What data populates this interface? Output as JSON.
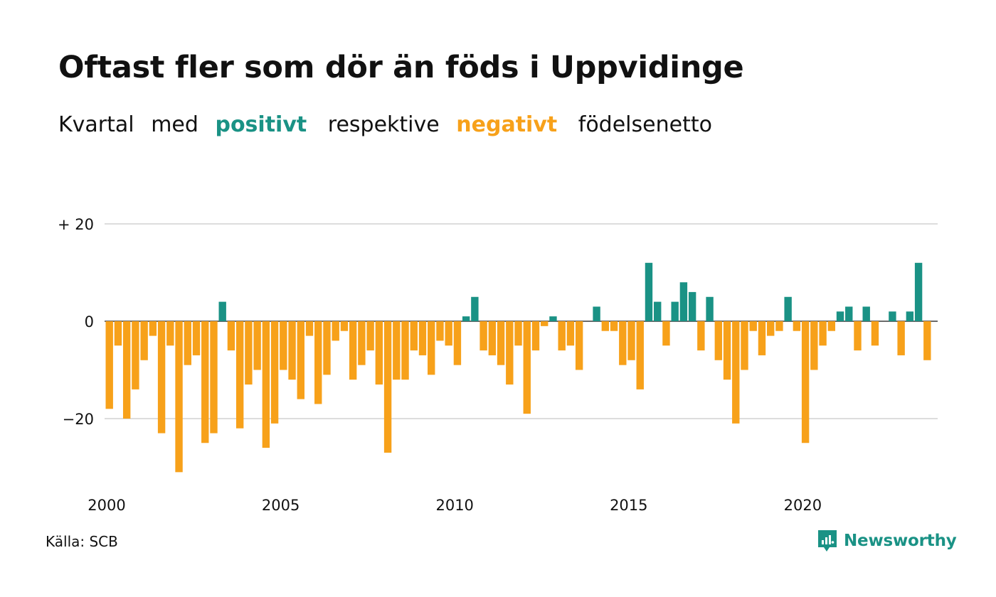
{
  "title": "Oftast fler som dör än föds i Uppvidinge",
  "subtitle": {
    "parts": [
      "Kvartal",
      "med",
      "positivt",
      "respektive",
      "negativt",
      "födelsenetto"
    ]
  },
  "source": "Källa: SCB",
  "brand": {
    "name": "Newsworthy",
    "icon": "newsworthy-logo-icon"
  },
  "colors": {
    "positive": "#1a9285",
    "negative": "#f7a11a",
    "grid": "#dddddd",
    "text": "#111111"
  },
  "chart_data": {
    "type": "bar",
    "x_start": 2000.0,
    "x_step": 0.25,
    "xticks": [
      2000,
      2005,
      2010,
      2015,
      2020
    ],
    "xtick_labels": [
      "2000",
      "2005",
      "2010",
      "2015",
      "2020"
    ],
    "yticks": [
      20,
      0,
      -20
    ],
    "ytick_labels": [
      "+ 20",
      "0",
      "−20"
    ],
    "ylim": [
      -32,
      20
    ],
    "grid": true,
    "values": [
      -18,
      -5,
      -20,
      -14,
      -8,
      -3,
      -23,
      -5,
      -31,
      -9,
      -7,
      -25,
      -23,
      4,
      -6,
      -22,
      -13,
      -10,
      -26,
      -21,
      -10,
      -12,
      -16,
      -3,
      -17,
      -11,
      -4,
      -2,
      -12,
      -9,
      -6,
      -13,
      -27,
      -12,
      -12,
      -6,
      -7,
      -11,
      -4,
      -5,
      -9,
      1,
      5,
      -6,
      -7,
      -9,
      -13,
      -5,
      -19,
      -6,
      -1,
      1,
      -6,
      -5,
      -10,
      0,
      3,
      -2,
      -2,
      -9,
      -8,
      -14,
      12,
      4,
      -5,
      4,
      8,
      6,
      -6,
      5,
      -8,
      -12,
      -21,
      -10,
      -2,
      -7,
      -3,
      -2,
      5,
      -2,
      -25,
      -10,
      -5,
      -2,
      2,
      3,
      -6,
      3,
      -5,
      0,
      2,
      -7,
      2,
      12,
      -8
    ]
  }
}
